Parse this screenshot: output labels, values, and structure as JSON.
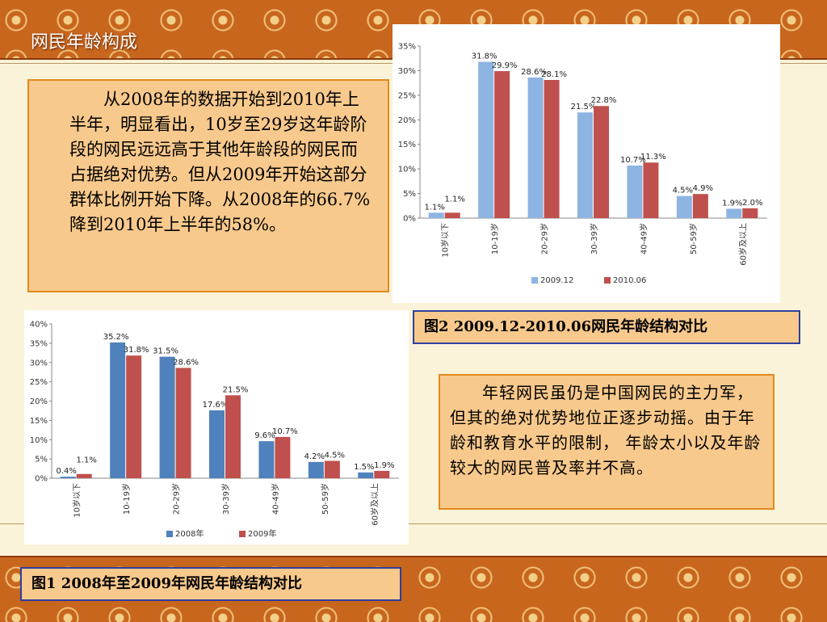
{
  "slide": {
    "title": "网民年龄构成",
    "text_top": "从2008年的数据开始到2010年上半年，明显看出，10岁至29岁这年龄阶段的网民远远高于其他年龄段的网民而占据绝对优势。但从2009年开始这部分群体比例开始下降。从2008年的66.7%降到2010年上半年的58%。",
    "text_bottom": "年轻网民虽仍是中国网民的主力军，但其的绝对优势地位正逐步动摇。由于年龄和教育水平的限制， 年龄太小以及年龄较大的网民普及率并不高。",
    "caption_fig2": "图2 2009.12-2010.06网民年龄结构对比",
    "caption_fig1": "图1 2008年至2009年网民年龄结构对比",
    "colors": {
      "band": "#c8661e",
      "text_box": "#f8c98c",
      "box_border": "#e08a1e",
      "caption_border": "#2e3f9e",
      "series_blue": "#8db4e2",
      "series_red": "#c0504d",
      "series_blue_dark": "#4f81bd"
    }
  },
  "chart_data": [
    {
      "type": "bar",
      "categories": [
        "10岁以下",
        "10-19岁",
        "20-29岁",
        "30-39岁",
        "40-49岁",
        "50-59岁",
        "60岁及以上"
      ],
      "series": [
        {
          "name": "2009.12",
          "values": [
            1.1,
            31.8,
            28.6,
            21.5,
            10.7,
            4.5,
            1.9
          ],
          "labels": [
            "1.1%",
            "31.8%",
            "28.6%",
            "21.5%",
            "10.7%",
            "4.5%",
            "1.9%"
          ]
        },
        {
          "name": "2010.06",
          "values": [
            1.1,
            29.9,
            28.1,
            22.8,
            11.3,
            4.9,
            2.0
          ],
          "labels": [
            "1.1%",
            "29.9%",
            "28.1%",
            "22.8%",
            "11.3%",
            "4.9%",
            "2.0%"
          ]
        }
      ],
      "y_ticks": [
        "0%",
        "5%",
        "10%",
        "15%",
        "20%",
        "25%",
        "30%",
        "35%"
      ],
      "ylim": [
        0,
        35
      ],
      "legend": "bottom",
      "grid": false
    },
    {
      "type": "bar",
      "categories": [
        "10岁以下",
        "10-19岁",
        "20-29岁",
        "30-39岁",
        "40-49岁",
        "50-59岁",
        "60岁及以上"
      ],
      "series": [
        {
          "name": "2008年",
          "values": [
            0.4,
            35.2,
            31.5,
            17.6,
            9.6,
            4.2,
            1.5
          ],
          "labels": [
            "0.4%",
            "35.2%",
            "31.5%",
            "17.6%",
            "9.6%",
            "4.2%",
            "1.5%"
          ]
        },
        {
          "name": "2009年",
          "values": [
            1.1,
            31.8,
            28.6,
            21.5,
            10.7,
            4.5,
            1.9
          ],
          "labels": [
            "1.1%",
            "31.8%",
            "28.6%",
            "21.5%",
            "10.7%",
            "4.5%",
            "1.9%"
          ]
        }
      ],
      "y_ticks": [
        "0%",
        "5%",
        "10%",
        "15%",
        "20%",
        "25%",
        "30%",
        "35%",
        "40%"
      ],
      "ylim": [
        0,
        40
      ],
      "legend": "bottom",
      "grid": false
    }
  ]
}
